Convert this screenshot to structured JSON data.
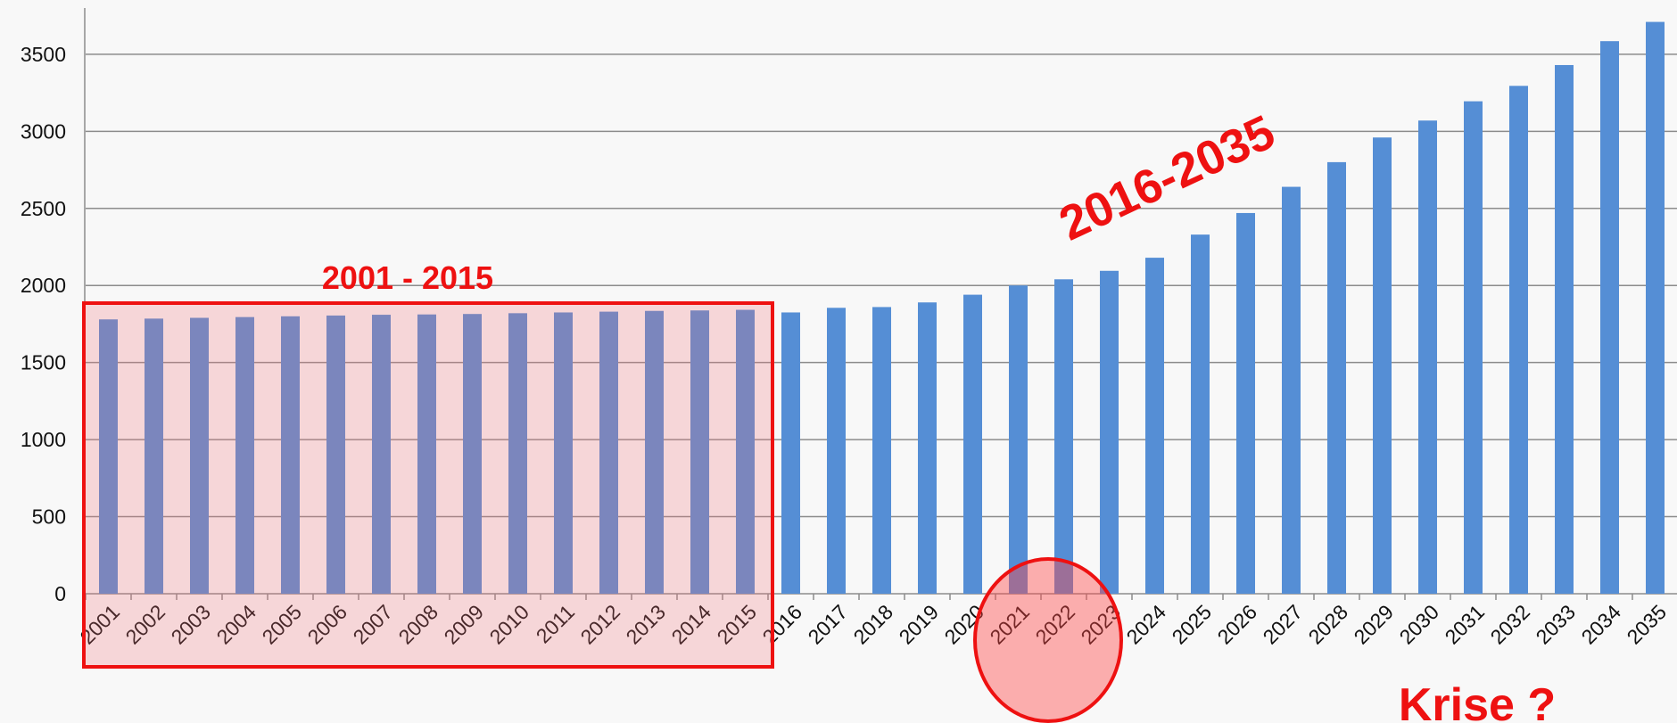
{
  "chart_data": {
    "type": "bar",
    "categories": [
      "2001",
      "2002",
      "2003",
      "2004",
      "2005",
      "2006",
      "2007",
      "2008",
      "2009",
      "2010",
      "2011",
      "2012",
      "2013",
      "2014",
      "2015",
      "2016",
      "2017",
      "2018",
      "2019",
      "2020",
      "2021",
      "2022",
      "2023",
      "2024",
      "2025",
      "2026",
      "2027",
      "2028",
      "2029",
      "2030",
      "2031",
      "2032",
      "2033",
      "2034",
      "2035"
    ],
    "values": [
      1780,
      1785,
      1790,
      1795,
      1800,
      1805,
      1810,
      1812,
      1815,
      1820,
      1825,
      1830,
      1835,
      1838,
      1842,
      1825,
      1855,
      1860,
      1890,
      1940,
      2000,
      2040,
      2095,
      2180,
      2330,
      2470,
      2640,
      2800,
      2960,
      3070,
      3195,
      3295,
      3430,
      3585,
      3710
    ],
    "color": "#558ed5",
    "ylim": [
      0,
      3800
    ],
    "yticks": [
      0,
      500,
      1000,
      1500,
      2000,
      2500,
      3000,
      3500
    ],
    "grid": true,
    "annotations": [
      "2001 - 2015",
      "2016-2035",
      "Krise ?"
    ]
  }
}
